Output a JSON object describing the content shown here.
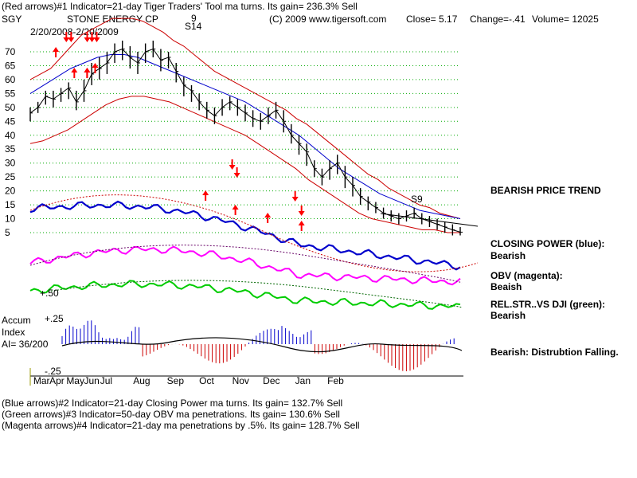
{
  "header": {
    "line1": "(Red arrows)#1 Indicator=21-day Tiger Traders' Tool ma turns. Its gain= 236.3% Sell",
    "ticker": "SGY",
    "company": "STONE ENERGY CP",
    "copyright": "(C) 2009 www.tigersoft.com",
    "close": "Close=  5.17",
    "change": "Change=-.41",
    "volume": "Volume= 12025",
    "date_range": "2/20/2008-2/20/2009"
  },
  "annotations": {
    "s14_nine": "9",
    "s14_label": "S14",
    "s9_label": "S9",
    "plus50": "+.50",
    "plus25": "+.25",
    "minus25": "-.25"
  },
  "accum": {
    "line1": "Accum",
    "line2": "Index",
    "line3": "AI= 36/200"
  },
  "right_labels": {
    "trend": "BEARISH PRICE TREND",
    "cp_title": "CLOSING POWER (blue):",
    "cp_value": "Bearish",
    "obv_title": "OBV (magenta):",
    "obv_value": "Beaish",
    "rs_title": "REL.STR..VS DJI (green):",
    "rs_value": "Bearish",
    "distribution": "Bearish: Distrubtion Falling."
  },
  "footer": {
    "line1": "(Blue arrows)#2 Indicator=21-day Closing Power ma turns. Its gain= 132.7% Sell",
    "line2": "(Green arrows)#3 Indicator=50-day OBV ma penetrations. Its gain= 130.6% Sell",
    "line3": "(Magenta arrows)#4 Indicator=21-day ma penetrations by .5%. Its gain= 128.7% Sell"
  },
  "colors": {
    "price": "#000000",
    "bands": "#cc0000",
    "ma50": "#0000cc",
    "closing_power": "#0000cc",
    "obv": "#ff00ff",
    "rel_strength": "#00cc00",
    "accum_pos": "#0000cc",
    "accum_neg": "#cc0000",
    "arrows": "#ff0000",
    "grid": "#00aa00"
  },
  "chart_data": {
    "type": "line",
    "y_tick_labels": [
      "70",
      "65",
      "60",
      "55",
      "50",
      "45",
      "40",
      "35",
      "30",
      "25",
      "20",
      "15",
      "10",
      "5"
    ],
    "y_ticks": [
      70,
      65,
      60,
      55,
      50,
      45,
      40,
      35,
      30,
      25,
      20,
      15,
      10,
      5
    ],
    "x_months": [
      "Mar",
      "Apr",
      "May",
      "Jun",
      "Jul",
      "Aug",
      "Sep",
      "Oct",
      "Nov",
      "Dec",
      "Jan",
      "Feb"
    ],
    "x_month_index": [
      0.4,
      2.5,
      4.7,
      7.0,
      9.1,
      13.4,
      17.8,
      22.0,
      26.3,
      30.3,
      34.5,
      38.7
    ],
    "price": {
      "name": "SGY",
      "weekly_close": [
        48,
        50,
        54,
        53,
        55,
        57,
        52,
        56,
        62,
        64,
        66,
        70,
        71,
        68,
        66,
        70,
        71,
        67,
        68,
        63,
        58,
        56,
        52,
        49,
        47,
        50,
        52,
        50,
        48,
        46,
        45,
        47,
        49,
        45,
        40,
        37,
        34,
        28,
        25,
        28,
        30,
        25,
        22,
        18,
        16,
        14,
        12,
        11,
        10,
        11,
        12,
        10,
        9,
        8,
        7,
        6,
        5.17
      ],
      "weekly_high": [
        50,
        52,
        56,
        56,
        57,
        59,
        56,
        60,
        66,
        68,
        70,
        73,
        74,
        72,
        70,
        73,
        74,
        71,
        70,
        66,
        61,
        58,
        55,
        52,
        50,
        53,
        54,
        53,
        51,
        49,
        48,
        50,
        52,
        49,
        44,
        40,
        37,
        31,
        28,
        31,
        33,
        29,
        25,
        21,
        18,
        16,
        14,
        13,
        12,
        13,
        14,
        12,
        11,
        10,
        9,
        8,
        7
      ],
      "weekly_low": [
        45,
        48,
        51,
        50,
        52,
        53,
        49,
        52,
        58,
        60,
        62,
        66,
        67,
        64,
        62,
        66,
        68,
        63,
        64,
        59,
        54,
        52,
        49,
        46,
        44,
        47,
        49,
        47,
        45,
        43,
        42,
        44,
        46,
        41,
        37,
        33,
        29,
        25,
        22,
        24,
        26,
        21,
        18,
        15,
        13,
        12,
        10,
        9,
        8,
        9,
        10,
        8,
        7,
        6,
        5,
        4,
        4
      ]
    },
    "upper_band": [
      60,
      62,
      64,
      68,
      72,
      76,
      78,
      80,
      82,
      82,
      82,
      81,
      79,
      77,
      74,
      72,
      69,
      66,
      63,
      61,
      59,
      57,
      55,
      53,
      51,
      49,
      46,
      44,
      41,
      38,
      35,
      32,
      29,
      26,
      24,
      21,
      19,
      17,
      15,
      14,
      12,
      11,
      10
    ],
    "lower_band": [
      37,
      38,
      40,
      42,
      45,
      48,
      51,
      53,
      54,
      54,
      53,
      52,
      50,
      48,
      46,
      44,
      42,
      40,
      37,
      34,
      31,
      28,
      24,
      21,
      18,
      15,
      12,
      10,
      9,
      8,
      7,
      6,
      6,
      5,
      5
    ],
    "ma50": [
      55,
      58,
      61,
      64,
      66,
      68,
      69,
      69,
      68,
      66,
      64,
      62,
      60,
      58,
      56,
      54,
      52,
      49,
      46,
      43,
      40,
      36,
      32,
      28,
      25,
      22,
      19,
      17,
      15,
      13,
      12,
      11,
      10
    ],
    "closing_power_trend": "Bearish",
    "obv_trend": "Beaish",
    "rel_strength_trend": "Bearish",
    "accum_ylim": [
      -0.25,
      0.25
    ],
    "sell_arrows": [
      "May",
      "May",
      "Jun",
      "Jun",
      "Jun",
      "Nov",
      "Nov",
      "Jan",
      "Jan"
    ],
    "buy_arrows": [
      "Apr",
      "May",
      "May",
      "Jun",
      "Jun",
      "Oct",
      "Nov",
      "Dec",
      "Jan"
    ]
  }
}
